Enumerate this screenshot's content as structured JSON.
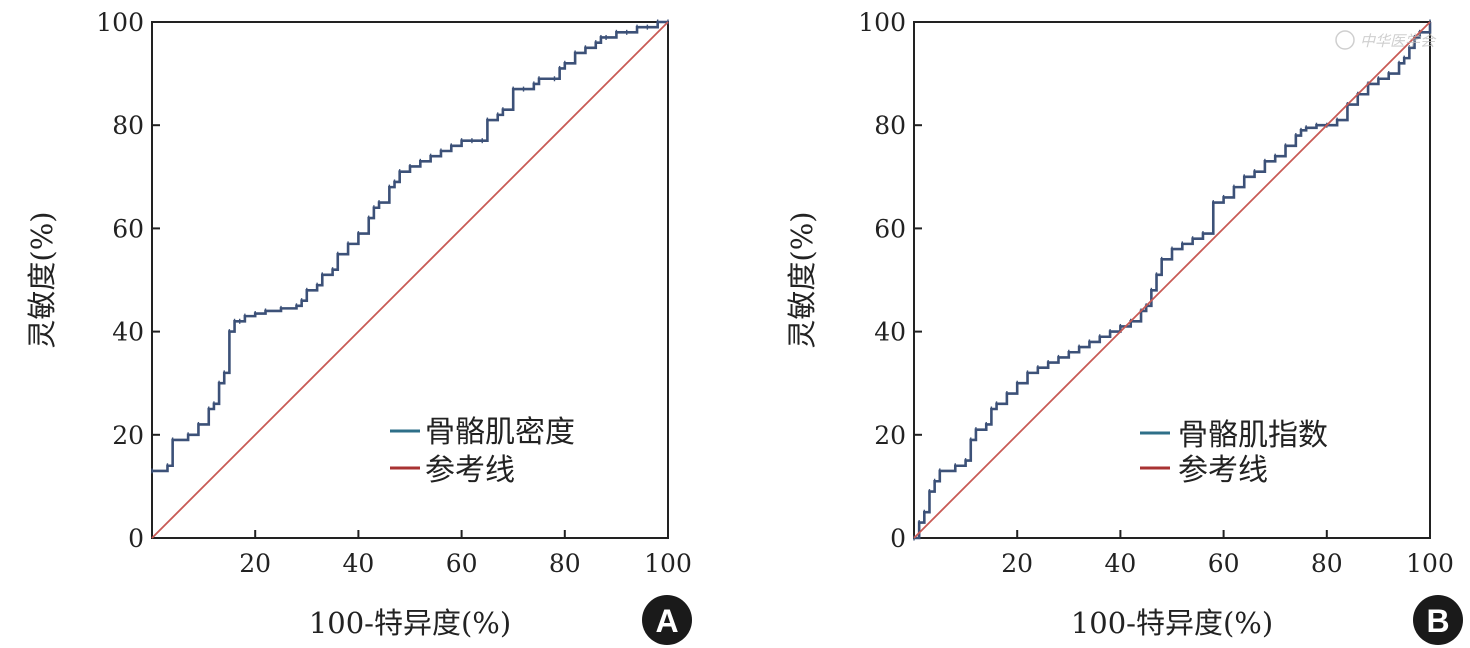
{
  "colors": {
    "roc": "#3c5178",
    "reference": "#c85a55",
    "legend_roc": "#2e6f88",
    "legend_reference": "#a83232",
    "badge": "#1a1a1a"
  },
  "watermark": "中华医学会",
  "chart_data": [
    {
      "type": "line",
      "panel_label": "A",
      "xlabel": "100-特异度(%)",
      "ylabel": "灵敏度(%)",
      "xlim": [
        0,
        100
      ],
      "ylim": [
        0,
        100
      ],
      "xticks": [
        "20",
        "40",
        "60",
        "80",
        "100"
      ],
      "yticks": [
        "0",
        "20",
        "40",
        "60",
        "80",
        "100"
      ],
      "grid": false,
      "legend_position": "lower-right",
      "series": [
        {
          "name": "骨骼肌密度",
          "kind": "step",
          "x": [
            0,
            3,
            4,
            7,
            9,
            11,
            12,
            13,
            14,
            15,
            16,
            17,
            18,
            20,
            22,
            25,
            28,
            29,
            30,
            32,
            33,
            35,
            36,
            38,
            40,
            42,
            43,
            44,
            46,
            47,
            48,
            50,
            52,
            54,
            56,
            58,
            60,
            62,
            64,
            65,
            67,
            68,
            70,
            72,
            74,
            75,
            78,
            79,
            80,
            82,
            84,
            86,
            87,
            88,
            90,
            92,
            94,
            96,
            98,
            100
          ],
          "y": [
            13,
            14,
            19,
            20,
            22,
            25,
            26,
            30,
            32,
            40,
            42,
            42,
            43,
            43.5,
            44,
            44.5,
            45,
            46,
            48,
            49,
            51,
            52,
            55,
            57,
            59,
            62,
            64,
            65,
            68,
            69,
            71,
            72,
            73,
            74,
            75,
            76,
            77,
            77,
            77,
            81,
            82,
            83,
            87,
            87,
            88,
            89,
            89,
            91,
            92,
            94,
            95,
            96,
            97,
            97,
            98,
            98,
            99,
            99,
            100,
            100
          ]
        },
        {
          "name": "参考线",
          "kind": "line",
          "x": [
            0,
            100
          ],
          "y": [
            0,
            100
          ]
        }
      ]
    },
    {
      "type": "line",
      "panel_label": "B",
      "xlabel": "100-特异度(%)",
      "ylabel": "灵敏度(%)",
      "xlim": [
        0,
        100
      ],
      "ylim": [
        0,
        100
      ],
      "xticks": [
        "20",
        "40",
        "60",
        "80",
        "100"
      ],
      "yticks": [
        "0",
        "20",
        "40",
        "60",
        "80",
        "100"
      ],
      "grid": false,
      "legend_position": "lower-right",
      "series": [
        {
          "name": "骨骼肌指数",
          "kind": "step",
          "x": [
            0,
            1,
            2,
            3,
            4,
            5,
            8,
            10,
            11,
            12,
            14,
            15,
            16,
            18,
            20,
            22,
            24,
            26,
            28,
            30,
            32,
            34,
            36,
            38,
            40,
            42,
            44,
            45,
            46,
            47,
            48,
            50,
            52,
            54,
            56,
            58,
            60,
            62,
            64,
            66,
            68,
            70,
            72,
            74,
            75,
            76,
            78,
            80,
            82,
            84,
            86,
            88,
            90,
            92,
            94,
            95,
            96,
            97,
            98,
            100
          ],
          "y": [
            0,
            3,
            5,
            9,
            11,
            13,
            14,
            15,
            19,
            21,
            22,
            25,
            26,
            28,
            30,
            32,
            33,
            34,
            35,
            36,
            37,
            38,
            39,
            40,
            41,
            42,
            44,
            45,
            48,
            51,
            54,
            56,
            57,
            58,
            59,
            65,
            66,
            68,
            70,
            71,
            73,
            74,
            76,
            78,
            79,
            79.5,
            80,
            80,
            81,
            84,
            86,
            88,
            89,
            90,
            92,
            93,
            95,
            97,
            98,
            100
          ]
        },
        {
          "name": "参考线",
          "kind": "line",
          "x": [
            0,
            100
          ],
          "y": [
            0,
            100
          ]
        }
      ]
    }
  ]
}
